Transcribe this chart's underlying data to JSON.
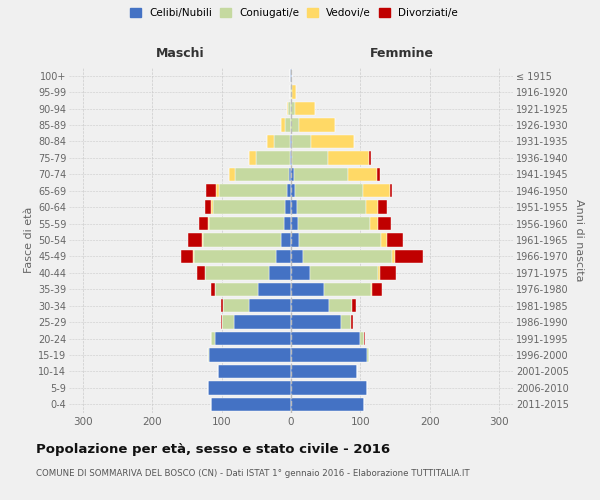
{
  "age_groups": [
    "0-4",
    "5-9",
    "10-14",
    "15-19",
    "20-24",
    "25-29",
    "30-34",
    "35-39",
    "40-44",
    "45-49",
    "50-54",
    "55-59",
    "60-64",
    "65-69",
    "70-74",
    "75-79",
    "80-84",
    "85-89",
    "90-94",
    "95-99",
    "100+"
  ],
  "birth_years": [
    "2011-2015",
    "2006-2010",
    "2001-2005",
    "1996-2000",
    "1991-1995",
    "1986-1990",
    "1981-1985",
    "1976-1980",
    "1971-1975",
    "1966-1970",
    "1961-1965",
    "1956-1960",
    "1951-1955",
    "1946-1950",
    "1941-1945",
    "1936-1940",
    "1931-1935",
    "1926-1930",
    "1921-1925",
    "1916-1920",
    "≤ 1915"
  ],
  "male": {
    "celibe": [
      115,
      120,
      105,
      118,
      110,
      82,
      60,
      48,
      32,
      22,
      15,
      10,
      8,
      6,
      3,
      2,
      1,
      0,
      0,
      0,
      1
    ],
    "coniugato": [
      0,
      0,
      0,
      1,
      5,
      18,
      38,
      62,
      92,
      118,
      112,
      108,
      105,
      98,
      78,
      48,
      24,
      9,
      4,
      1,
      1
    ],
    "vedovo": [
      0,
      0,
      0,
      0,
      0,
      0,
      0,
      0,
      0,
      1,
      2,
      2,
      3,
      4,
      8,
      10,
      10,
      5,
      2,
      0,
      0
    ],
    "divorziato": [
      0,
      0,
      0,
      0,
      0,
      1,
      3,
      5,
      12,
      18,
      20,
      12,
      8,
      14,
      1,
      0,
      0,
      0,
      0,
      0,
      0
    ]
  },
  "female": {
    "nubile": [
      105,
      110,
      95,
      110,
      100,
      72,
      55,
      48,
      28,
      18,
      12,
      10,
      8,
      6,
      4,
      2,
      1,
      0,
      0,
      0,
      1
    ],
    "coniugata": [
      0,
      0,
      0,
      2,
      5,
      15,
      33,
      68,
      98,
      128,
      118,
      104,
      100,
      98,
      78,
      52,
      28,
      12,
      6,
      2,
      1
    ],
    "vedova": [
      0,
      0,
      0,
      0,
      0,
      0,
      0,
      1,
      2,
      4,
      8,
      12,
      18,
      38,
      42,
      58,
      62,
      52,
      28,
      5,
      0
    ],
    "divorziata": [
      0,
      0,
      0,
      0,
      1,
      3,
      5,
      14,
      24,
      40,
      24,
      18,
      12,
      4,
      4,
      4,
      0,
      0,
      0,
      0,
      0
    ]
  },
  "colors": {
    "celibe": "#4472C4",
    "coniugato": "#c5d9a0",
    "vedovo": "#FFD966",
    "divorziato": "#C00000"
  },
  "legend_labels": [
    "Celibi/Nubili",
    "Coniugati/e",
    "Vedovi/e",
    "Divorziati/e"
  ],
  "title": "Popolazione per età, sesso e stato civile - 2016",
  "subtitle": "COMUNE DI SOMMARIVA DEL BOSCO (CN) - Dati ISTAT 1° gennaio 2016 - Elaborazione TUTTITALIA.IT",
  "label_maschi": "Maschi",
  "label_femmine": "Femmine",
  "ylabel_left": "Fasce di età",
  "ylabel_right": "Anni di nascita",
  "xlim": 320,
  "bg_color": "#f0f0f0",
  "grid_color": "#cccccc"
}
